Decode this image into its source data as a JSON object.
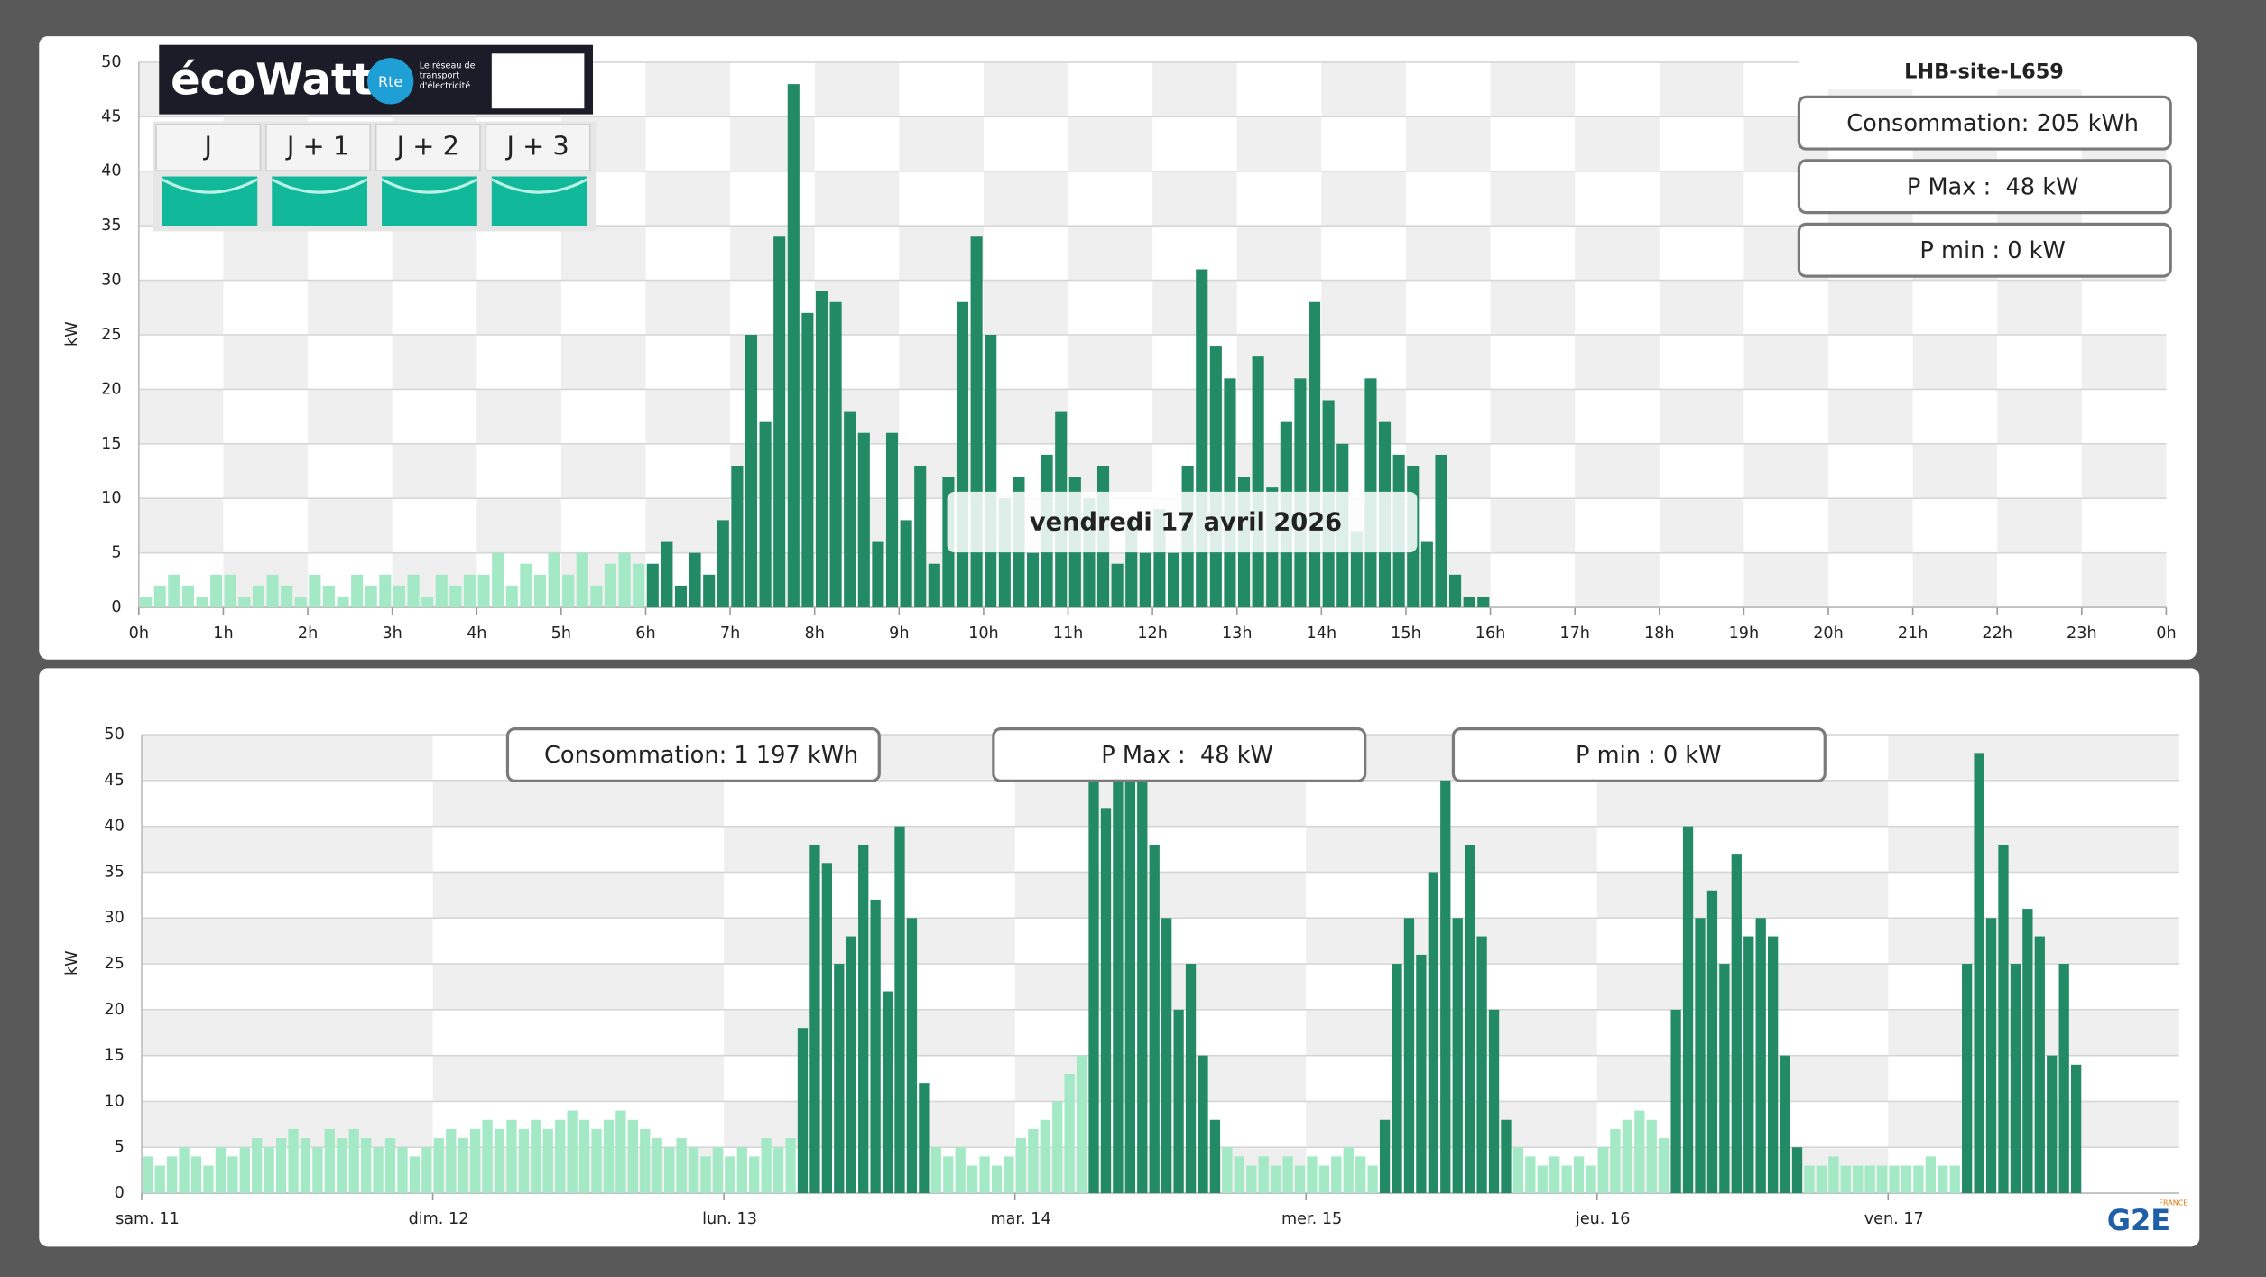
{
  "ecowatt": {
    "brand": "écoWatt",
    "rte": "Rte",
    "rte_tagline": "Le réseau de transport d'électricité",
    "days": [
      "J",
      "J + 1",
      "J + 2",
      "J + 3"
    ]
  },
  "logo": {
    "name": "G2E",
    "country": "FRANCE"
  },
  "chart_data": [
    {
      "type": "bar",
      "title": "LHB-site-L659",
      "y_label": "kW",
      "tooltip": "vendredi 17 avril 2026",
      "annotations": [
        "Consommation: 205 kWh",
        "P Max :  48 kW",
        "P min : 0 kW"
      ],
      "x": [
        0,
        10,
        20,
        30,
        40,
        50,
        60,
        70,
        80,
        90,
        100,
        110,
        120,
        130,
        140,
        150,
        160,
        170,
        180,
        190,
        200,
        210,
        220,
        230,
        240,
        250,
        260,
        270,
        280,
        290,
        300,
        310,
        320,
        330,
        340,
        350,
        360,
        370,
        380,
        390,
        400,
        410,
        420,
        430,
        440,
        450,
        460,
        470,
        480,
        490,
        500,
        510,
        520,
        530,
        540,
        550,
        560,
        570,
        580,
        590,
        600,
        610,
        620,
        630,
        640,
        650,
        660,
        670,
        680,
        690,
        700,
        710,
        720,
        730,
        740,
        750,
        760,
        770,
        780,
        790,
        800,
        810,
        820,
        830,
        840,
        850,
        860,
        870,
        880,
        890,
        900,
        910,
        920,
        930,
        940,
        950
      ],
      "xlim": [
        0,
        1440
      ],
      "xticks": [
        {
          "value": 0,
          "label": "0h"
        },
        {
          "value": 60,
          "label": "1h"
        },
        {
          "value": 120,
          "label": "2h"
        },
        {
          "value": 180,
          "label": "3h"
        },
        {
          "value": 240,
          "label": "4h"
        },
        {
          "value": 300,
          "label": "5h"
        },
        {
          "value": 360,
          "label": "6h"
        },
        {
          "value": 420,
          "label": "7h"
        },
        {
          "value": 480,
          "label": "8h"
        },
        {
          "value": 540,
          "label": "9h"
        },
        {
          "value": 600,
          "label": "10h"
        },
        {
          "value": 660,
          "label": "11h"
        },
        {
          "value": 720,
          "label": "12h"
        },
        {
          "value": 780,
          "label": "13h"
        },
        {
          "value": 840,
          "label": "14h"
        },
        {
          "value": 900,
          "label": "15h"
        },
        {
          "value": 960,
          "label": "16h"
        },
        {
          "value": 1020,
          "label": "17h"
        },
        {
          "value": 1080,
          "label": "18h"
        },
        {
          "value": 1140,
          "label": "19h"
        },
        {
          "value": 1200,
          "label": "20h"
        },
        {
          "value": 1260,
          "label": "21h"
        },
        {
          "value": 1320,
          "label": "22h"
        },
        {
          "value": 1380,
          "label": "23h"
        },
        {
          "value": 1440,
          "label": "0h"
        }
      ],
      "ylim": [
        0,
        50
      ],
      "yticks": [
        0,
        5,
        10,
        15,
        20,
        25,
        30,
        35,
        40,
        45,
        50
      ],
      "grid": true,
      "series": [
        {
          "color": "#a3e9c6",
          "values": [
            1,
            2,
            3,
            2,
            1,
            3,
            3,
            1,
            2,
            3,
            2,
            1,
            3,
            2,
            1,
            3,
            2,
            3,
            2,
            3,
            1,
            3,
            2,
            3,
            3,
            5,
            2,
            4,
            3,
            5,
            3,
            5,
            2,
            4,
            5,
            4,
            null,
            null,
            null,
            null,
            null,
            null,
            null,
            null,
            null,
            null,
            null,
            null,
            null,
            null,
            null,
            null,
            null,
            null,
            null,
            null,
            null,
            null,
            null,
            null,
            null,
            null,
            null,
            null,
            null,
            null,
            null,
            null,
            null,
            null,
            null,
            null,
            null,
            null,
            null,
            null,
            null,
            null,
            null,
            null,
            null,
            null,
            null,
            null,
            null,
            null,
            null,
            null,
            null,
            null,
            null,
            null,
            null,
            null,
            null,
            null
          ]
        },
        {
          "color": "#238a66",
          "values": [
            null,
            null,
            null,
            null,
            null,
            null,
            null,
            null,
            null,
            null,
            null,
            null,
            null,
            null,
            null,
            null,
            null,
            null,
            null,
            null,
            null,
            null,
            null,
            null,
            null,
            null,
            null,
            null,
            null,
            null,
            null,
            null,
            null,
            null,
            null,
            null,
            4,
            6,
            2,
            5,
            3,
            8,
            13,
            25,
            17,
            34,
            48,
            27,
            29,
            28,
            18,
            16,
            6,
            16,
            8,
            13,
            4,
            12,
            28,
            34,
            25,
            10,
            12,
            5,
            14,
            18,
            12,
            10,
            13,
            4,
            8,
            5,
            9,
            5,
            13,
            31,
            24,
            21,
            12,
            23,
            11,
            17,
            21,
            28,
            19,
            15,
            7,
            21,
            17,
            14,
            13,
            6,
            14,
            3,
            1,
            1
          ]
        }
      ]
    },
    {
      "type": "bar",
      "y_label": "kW",
      "annotations": [
        "Consommation: 1 197 kWh",
        "P Max :  48 kW",
        "P min : 0 kW"
      ],
      "x": [
        0,
        1,
        2,
        3,
        4,
        5,
        6,
        7,
        8,
        9,
        10,
        11,
        12,
        13,
        14,
        15,
        16,
        17,
        18,
        19,
        20,
        21,
        22,
        23,
        24,
        25,
        26,
        27,
        28,
        29,
        30,
        31,
        32,
        33,
        34,
        35,
        36,
        37,
        38,
        39,
        40,
        41,
        42,
        43,
        44,
        45,
        46,
        47,
        48,
        49,
        50,
        51,
        52,
        53,
        54,
        55,
        56,
        57,
        58,
        59,
        60,
        61,
        62,
        63,
        64,
        65,
        66,
        67,
        68,
        69,
        70,
        71,
        72,
        73,
        74,
        75,
        76,
        77,
        78,
        79,
        80,
        81,
        82,
        83,
        84,
        85,
        86,
        87,
        88,
        89,
        90,
        91,
        92,
        93,
        94,
        95,
        96,
        97,
        98,
        99,
        100,
        101,
        102,
        103,
        104,
        105,
        106,
        107,
        108,
        109,
        110,
        111,
        112,
        113,
        114,
        115,
        116,
        117,
        118,
        119,
        120,
        121,
        122,
        123,
        124,
        125,
        126,
        127,
        128,
        129,
        130,
        131,
        132,
        133,
        134,
        135,
        136,
        137,
        138,
        139,
        140,
        141,
        142,
        143,
        144,
        145,
        146,
        147,
        148,
        149,
        150,
        151,
        152,
        153,
        154,
        155,
        156,
        157,
        158,
        159
      ],
      "xlim": [
        0,
        168
      ],
      "xticks": [
        {
          "value": 0,
          "label": "sam. 11"
        },
        {
          "value": 24,
          "label": "dim. 12"
        },
        {
          "value": 48,
          "label": "lun. 13"
        },
        {
          "value": 72,
          "label": "mar. 14"
        },
        {
          "value": 96,
          "label": "mer. 15"
        },
        {
          "value": 120,
          "label": "jeu. 16"
        },
        {
          "value": 144,
          "label": "ven. 17"
        }
      ],
      "ylim": [
        0,
        50
      ],
      "yticks": [
        0,
        5,
        10,
        15,
        20,
        25,
        30,
        35,
        40,
        45,
        50
      ],
      "grid": true,
      "series": [
        {
          "color": "#a3e9c6",
          "values": [
            4,
            3,
            4,
            5,
            4,
            3,
            5,
            4,
            5,
            6,
            5,
            6,
            7,
            6,
            5,
            7,
            6,
            7,
            6,
            5,
            6,
            5,
            4,
            5,
            6,
            7,
            6,
            7,
            8,
            7,
            8,
            7,
            8,
            7,
            8,
            9,
            8,
            7,
            8,
            9,
            8,
            7,
            6,
            5,
            6,
            5,
            4,
            5,
            4,
            5,
            4,
            6,
            5,
            6,
            null,
            null,
            null,
            null,
            null,
            null,
            null,
            null,
            null,
            null,
            null,
            5,
            4,
            5,
            3,
            4,
            3,
            4,
            6,
            7,
            8,
            10,
            13,
            15,
            null,
            null,
            null,
            null,
            null,
            null,
            null,
            null,
            null,
            null,
            null,
            5,
            4,
            3,
            4,
            3,
            4,
            3,
            4,
            3,
            4,
            5,
            4,
            3,
            null,
            null,
            null,
            null,
            null,
            null,
            null,
            null,
            null,
            null,
            null,
            5,
            4,
            3,
            4,
            3,
            4,
            3,
            5,
            7,
            8,
            9,
            8,
            6,
            null,
            null,
            null,
            null,
            null,
            null,
            null,
            null,
            null,
            null,
            null,
            3,
            3,
            4,
            3,
            3,
            3,
            3,
            3,
            3,
            3,
            4,
            3,
            3,
            null,
            null,
            null,
            null,
            null,
            null,
            null,
            null,
            null,
            null
          ]
        },
        {
          "color": "#238a66",
          "values": [
            null,
            null,
            null,
            null,
            null,
            null,
            null,
            null,
            null,
            null,
            null,
            null,
            null,
            null,
            null,
            null,
            null,
            null,
            null,
            null,
            null,
            null,
            null,
            null,
            null,
            null,
            null,
            null,
            null,
            null,
            null,
            null,
            null,
            null,
            null,
            null,
            null,
            null,
            null,
            null,
            null,
            null,
            null,
            null,
            null,
            null,
            null,
            null,
            null,
            null,
            null,
            null,
            null,
            null,
            18,
            38,
            36,
            25,
            28,
            38,
            32,
            22,
            40,
            30,
            12,
            null,
            null,
            null,
            null,
            null,
            null,
            null,
            null,
            null,
            null,
            null,
            null,
            null,
            45,
            42,
            45,
            46,
            45,
            38,
            30,
            20,
            25,
            15,
            8,
            null,
            null,
            null,
            null,
            null,
            null,
            null,
            null,
            null,
            null,
            null,
            null,
            null,
            8,
            25,
            30,
            26,
            35,
            45,
            30,
            38,
            28,
            20,
            8,
            null,
            null,
            null,
            null,
            null,
            null,
            null,
            null,
            null,
            null,
            null,
            null,
            null,
            20,
            40,
            30,
            33,
            25,
            37,
            28,
            30,
            28,
            15,
            5,
            null,
            null,
            null,
            null,
            null,
            null,
            null,
            null,
            null,
            null,
            null,
            null,
            null,
            25,
            48,
            30,
            38,
            25,
            31,
            28,
            15,
            25,
            14
          ]
        }
      ]
    }
  ]
}
